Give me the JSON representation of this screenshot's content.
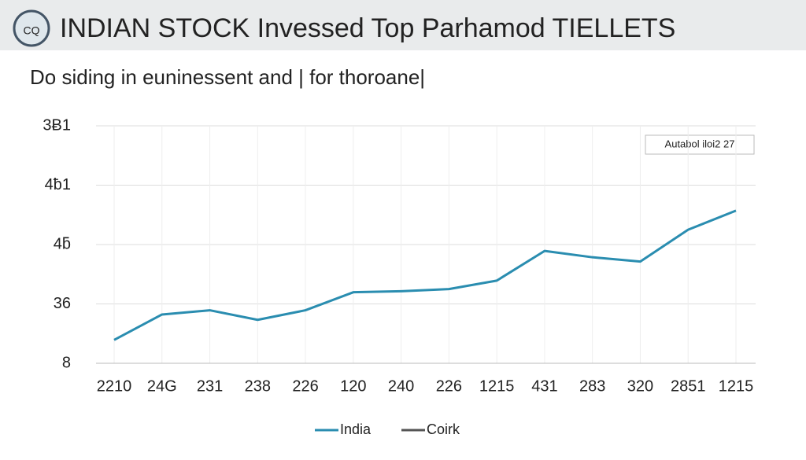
{
  "chart_data": {
    "type": "line",
    "logo_text": "CQ",
    "title": "INDIAN STOCK Invessed Top Parhamod TIELLETS",
    "subtitle": "Do siding in euninessent and | for thoroane|",
    "annotation": "Autabol iloi2 27",
    "categories": [
      "2210",
      "24G",
      "231",
      "238",
      "226",
      "120",
      "240",
      "226",
      "1215",
      "431",
      "283",
      "320",
      "2851",
      "1215"
    ],
    "series": [
      {
        "name": "India",
        "color": "#2a8db0",
        "values": [
          19,
          31,
          33,
          28.5,
          33,
          41.5,
          42,
          43,
          47,
          61,
          58,
          56,
          71,
          80
        ]
      },
      {
        "name": "Coirk",
        "color": "#555555",
        "values": [
          null,
          null,
          null,
          null,
          null,
          null,
          null,
          null,
          null,
          null,
          null,
          null,
          null,
          null
        ]
      }
    ],
    "ylim": [
      8,
      120
    ],
    "yticks": [
      {
        "value": 8,
        "label": "8"
      },
      {
        "value": 36,
        "label": "36"
      },
      {
        "value": 64,
        "label": "4ƃ"
      },
      {
        "value": 92,
        "label": "4ƀ1"
      },
      {
        "value": 120,
        "label": "3Ƀ1"
      }
    ],
    "grid": true,
    "legend": "bottom"
  }
}
